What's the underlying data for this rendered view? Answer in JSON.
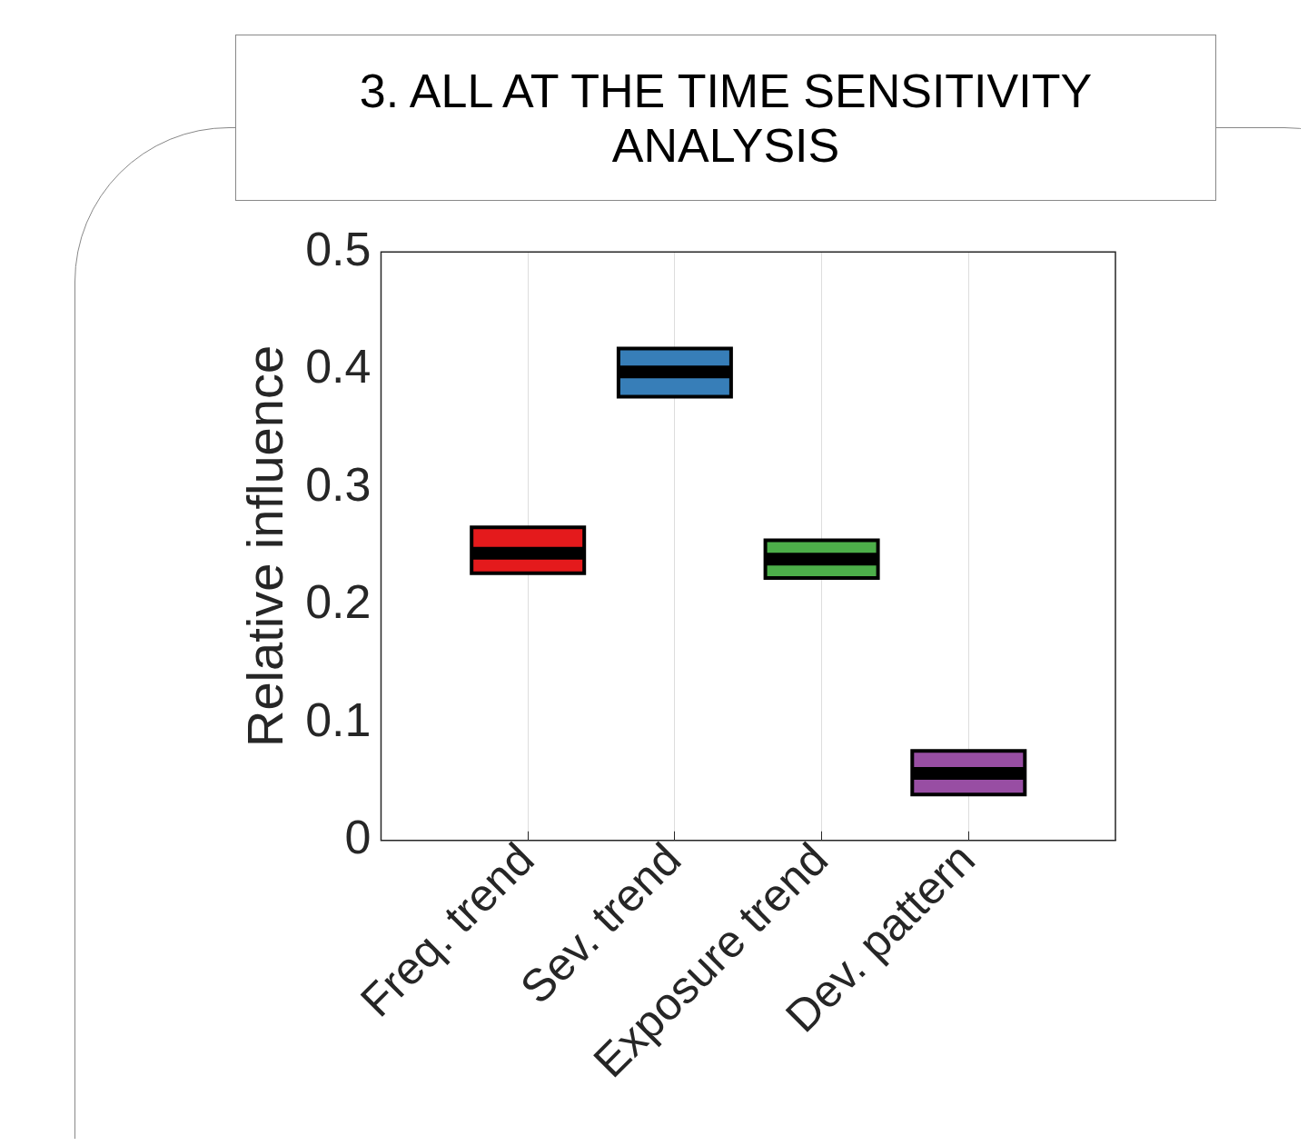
{
  "chart_data": {
    "type": "box",
    "title": "3. ALL AT THE TIME SENSITIVITY ANALYSIS",
    "ylabel": "Relative influence",
    "categories": [
      "Freq. trend",
      "Sev. trend",
      "Exposure trend",
      "Dev. pattern"
    ],
    "boxes": [
      {
        "low": 0.227,
        "q1": 0.227,
        "median": 0.244,
        "q3": 0.266,
        "high": 0.266
      },
      {
        "low": 0.377,
        "q1": 0.377,
        "median": 0.398,
        "q3": 0.418,
        "high": 0.418
      },
      {
        "low": 0.223,
        "q1": 0.223,
        "median": 0.239,
        "q3": 0.255,
        "high": 0.255
      },
      {
        "low": 0.039,
        "q1": 0.039,
        "median": 0.057,
        "q3": 0.076,
        "high": 0.076
      }
    ],
    "colors": [
      "#e41a1c",
      "#377eb8",
      "#4daf4a",
      "#984ea3"
    ],
    "ylim": [
      0,
      0.5
    ],
    "yticks": [
      0,
      0.1,
      0.2,
      0.3,
      0.4,
      0.5
    ],
    "grid": "x"
  }
}
